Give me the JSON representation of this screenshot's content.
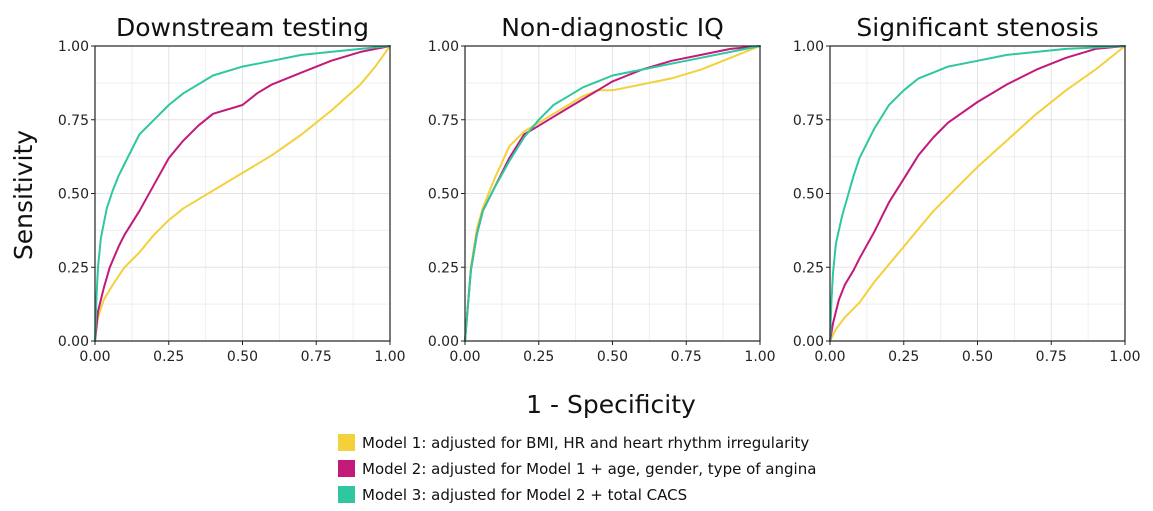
{
  "chart_data": {
    "type": "line",
    "xlabel": "1 - Specificity",
    "ylabel": "Sensitivity",
    "xlim": [
      0,
      1
    ],
    "ylim": [
      0,
      1
    ],
    "grid": true,
    "legend_position": "bottom",
    "tick_labels": [
      "0.00",
      "0.25",
      "0.50",
      "0.75",
      "1.00"
    ],
    "legend": [
      {
        "label": "Model 1: adjusted for BMI, HR and heart rhythm irregularity",
        "color": "#f2d13b"
      },
      {
        "label": "Model 2: adjusted for Model 1 + age, gender, type of angina",
        "color": "#c3197a"
      },
      {
        "label": "Model 3: adjusted for Model 2 + total CACS",
        "color": "#2ec7a0"
      }
    ],
    "panels": [
      {
        "title": "Downstream testing",
        "series": [
          {
            "color": "#f2d13b",
            "x": [
              0,
              0.01,
              0.03,
              0.06,
              0.1,
              0.15,
              0.2,
              0.25,
              0.3,
              0.4,
              0.5,
              0.6,
              0.7,
              0.8,
              0.9,
              0.95,
              1.0
            ],
            "y": [
              0,
              0.08,
              0.14,
              0.19,
              0.25,
              0.3,
              0.36,
              0.41,
              0.45,
              0.51,
              0.57,
              0.63,
              0.7,
              0.78,
              0.87,
              0.93,
              1.0
            ]
          },
          {
            "color": "#c3197a",
            "x": [
              0,
              0.01,
              0.03,
              0.05,
              0.08,
              0.1,
              0.15,
              0.2,
              0.25,
              0.3,
              0.35,
              0.4,
              0.5,
              0.55,
              0.6,
              0.7,
              0.8,
              0.9,
              1.0
            ],
            "y": [
              0,
              0.1,
              0.18,
              0.25,
              0.32,
              0.36,
              0.44,
              0.53,
              0.62,
              0.68,
              0.73,
              0.77,
              0.8,
              0.84,
              0.87,
              0.91,
              0.95,
              0.98,
              1.0
            ]
          },
          {
            "color": "#2ec7a0",
            "x": [
              0,
              0.005,
              0.01,
              0.02,
              0.04,
              0.06,
              0.08,
              0.1,
              0.15,
              0.2,
              0.25,
              0.3,
              0.35,
              0.4,
              0.5,
              0.6,
              0.7,
              0.8,
              0.9,
              1.0
            ],
            "y": [
              0,
              0.15,
              0.25,
              0.35,
              0.45,
              0.51,
              0.56,
              0.6,
              0.7,
              0.75,
              0.8,
              0.84,
              0.87,
              0.9,
              0.93,
              0.95,
              0.97,
              0.98,
              0.99,
              1.0
            ]
          }
        ]
      },
      {
        "title": "Non-diagnostic IQ",
        "series": [
          {
            "color": "#f2d13b",
            "x": [
              0,
              0.01,
              0.02,
              0.04,
              0.06,
              0.1,
              0.15,
              0.2,
              0.25,
              0.3,
              0.35,
              0.4,
              0.45,
              0.5,
              0.6,
              0.7,
              0.8,
              0.9,
              1.0
            ],
            "y": [
              0,
              0.12,
              0.25,
              0.38,
              0.45,
              0.55,
              0.66,
              0.71,
              0.74,
              0.77,
              0.8,
              0.83,
              0.85,
              0.85,
              0.87,
              0.89,
              0.92,
              0.96,
              1.0
            ]
          },
          {
            "color": "#c3197a",
            "x": [
              0,
              0.01,
              0.02,
              0.04,
              0.06,
              0.1,
              0.15,
              0.2,
              0.25,
              0.3,
              0.35,
              0.4,
              0.45,
              0.5,
              0.55,
              0.6,
              0.7,
              0.8,
              0.9,
              1.0
            ],
            "y": [
              0,
              0.12,
              0.24,
              0.36,
              0.44,
              0.52,
              0.62,
              0.7,
              0.73,
              0.76,
              0.79,
              0.82,
              0.85,
              0.88,
              0.9,
              0.92,
              0.95,
              0.97,
              0.99,
              1.0
            ]
          },
          {
            "color": "#2ec7a0",
            "x": [
              0,
              0.01,
              0.02,
              0.04,
              0.06,
              0.1,
              0.15,
              0.2,
              0.25,
              0.3,
              0.35,
              0.4,
              0.45,
              0.5,
              0.6,
              0.7,
              0.8,
              0.9,
              1.0
            ],
            "y": [
              0,
              0.12,
              0.24,
              0.36,
              0.44,
              0.52,
              0.61,
              0.69,
              0.75,
              0.8,
              0.83,
              0.86,
              0.88,
              0.9,
              0.92,
              0.94,
              0.96,
              0.98,
              1.0
            ]
          }
        ]
      },
      {
        "title": "Significant stenosis",
        "series": [
          {
            "color": "#f2d13b",
            "x": [
              0,
              0.02,
              0.05,
              0.1,
              0.15,
              0.2,
              0.25,
              0.3,
              0.35,
              0.4,
              0.5,
              0.6,
              0.7,
              0.8,
              0.9,
              1.0
            ],
            "y": [
              0,
              0.04,
              0.08,
              0.13,
              0.2,
              0.26,
              0.32,
              0.38,
              0.44,
              0.49,
              0.59,
              0.68,
              0.77,
              0.85,
              0.92,
              1.0
            ]
          },
          {
            "color": "#c3197a",
            "x": [
              0,
              0.01,
              0.03,
              0.05,
              0.08,
              0.1,
              0.15,
              0.2,
              0.25,
              0.3,
              0.35,
              0.4,
              0.5,
              0.6,
              0.7,
              0.8,
              0.9,
              1.0
            ],
            "y": [
              0,
              0.06,
              0.14,
              0.19,
              0.24,
              0.28,
              0.37,
              0.47,
              0.55,
              0.63,
              0.69,
              0.74,
              0.81,
              0.87,
              0.92,
              0.96,
              0.99,
              1.0
            ]
          },
          {
            "color": "#2ec7a0",
            "x": [
              0,
              0.005,
              0.01,
              0.02,
              0.04,
              0.06,
              0.08,
              0.1,
              0.15,
              0.2,
              0.25,
              0.3,
              0.35,
              0.4,
              0.5,
              0.6,
              0.7,
              0.8,
              0.9,
              1.0
            ],
            "y": [
              0,
              0.14,
              0.23,
              0.33,
              0.42,
              0.49,
              0.56,
              0.62,
              0.72,
              0.8,
              0.85,
              0.89,
              0.91,
              0.93,
              0.95,
              0.97,
              0.98,
              0.99,
              0.995,
              1.0
            ]
          }
        ]
      }
    ]
  }
}
